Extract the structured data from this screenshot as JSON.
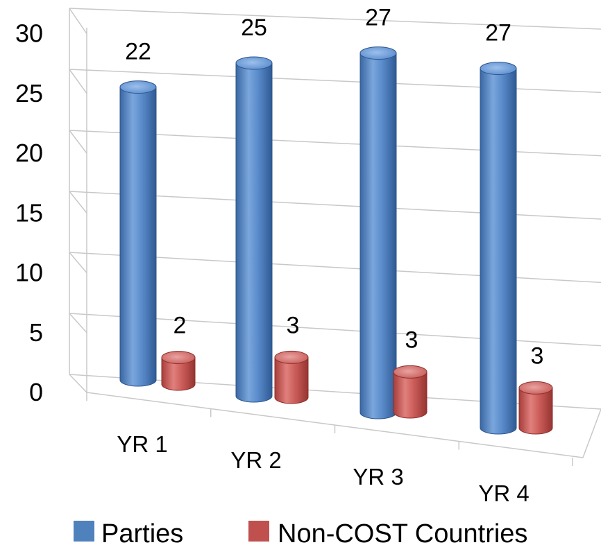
{
  "chart_data": {
    "type": "bar",
    "style": "3d-cylinder-clustered",
    "categories": [
      "YR 1",
      "YR 2",
      "YR 3",
      "YR 4"
    ],
    "series": [
      {
        "name": "Parties",
        "values": [
          22,
          25,
          27,
          27
        ],
        "color": "#4f81bd"
      },
      {
        "name": "Non-COST Countries",
        "values": [
          2,
          3,
          3,
          3
        ],
        "color": "#c0504d"
      }
    ],
    "y_ticks": [
      "0",
      "5",
      "10",
      "15",
      "20",
      "25",
      "30"
    ],
    "ylim": [
      0,
      30
    ],
    "data_labels": true,
    "grid": true,
    "legend": "bottom"
  }
}
